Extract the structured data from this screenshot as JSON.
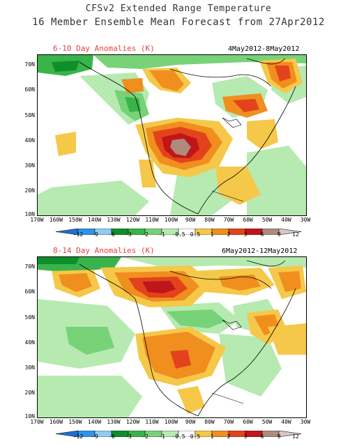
{
  "title_line1": "CFSv2 Extended Range Temperature",
  "title_line2": "16 Member Ensemble Mean Forecast from 27Apr2012",
  "panels": [
    {
      "title": "6-10 Day Anomalies (K)",
      "dates": "4May2012-8May2012"
    },
    {
      "title": "8-14 Day Anomalies (K)",
      "dates": "6May2012-12May2012"
    }
  ],
  "lat_labels": [
    "70N",
    "60N",
    "50N",
    "40N",
    "30N",
    "20N",
    "10N"
  ],
  "lon_labels": [
    "170W",
    "160W",
    "150W",
    "140W",
    "130W",
    "120W",
    "110W",
    "100W",
    "90W",
    "80W",
    "70W",
    "60W",
    "50W",
    "40W",
    "30W"
  ],
  "colorbar": {
    "labels": [
      "-12",
      "-9",
      "-6",
      "-3",
      "-2",
      "-1",
      "-0.5",
      "0.5",
      "1",
      "2",
      "3",
      "6",
      "9",
      "12"
    ],
    "colors": [
      "#1e6fd0",
      "#2f93e8",
      "#8ecbf5",
      "#0e8f2c",
      "#38b44a",
      "#78d278",
      "#b6eab0",
      "#ffffff",
      "#f5c84a",
      "#f08e1e",
      "#e2431c",
      "#c0161a",
      "#b08a7c",
      "#d8c4c4"
    ]
  }
}
